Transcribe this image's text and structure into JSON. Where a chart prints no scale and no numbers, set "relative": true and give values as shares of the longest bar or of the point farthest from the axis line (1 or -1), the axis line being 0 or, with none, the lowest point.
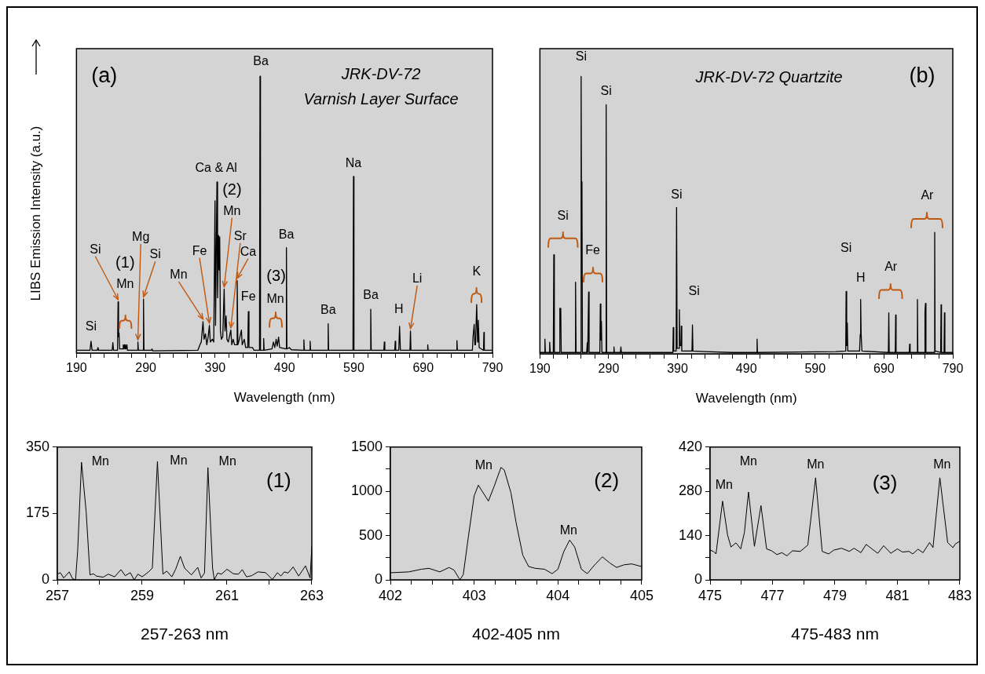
{
  "chart_data": [
    {
      "type": "line",
      "title": "JRK-DV-72\nVarnish Layer Surface",
      "xlabel": "Wavelength (nm)",
      "ylabel": "LIBS Emission Intensity (a.u.)",
      "relative": true,
      "color": "#000000",
      "xlim": [
        190,
        790
      ],
      "xticks": [
        190,
        {
          "value": 210,
          "label": null
        },
        {
          "value": 230,
          "label": null
        },
        {
          "value": 250,
          "label": null
        },
        {
          "value": 270,
          "label": null
        },
        290,
        {
          "value": 310,
          "label": null
        },
        {
          "value": 330,
          "label": null
        },
        {
          "value": 350,
          "label": null
        },
        {
          "value": 370,
          "label": null
        },
        390,
        {
          "value": 410,
          "label": null
        },
        {
          "value": 430,
          "label": null
        },
        {
          "value": 450,
          "label": null
        },
        {
          "value": 470,
          "label": null
        },
        490,
        {
          "value": 510,
          "label": null
        },
        {
          "value": 530,
          "label": null
        },
        {
          "value": 550,
          "label": null
        },
        {
          "value": 570,
          "label": null
        },
        590,
        {
          "value": 610,
          "label": null
        },
        {
          "value": 630,
          "label": null
        },
        {
          "value": 650,
          "label": null
        },
        {
          "value": 670,
          "label": null
        },
        690,
        {
          "value": 710,
          "label": null
        },
        {
          "value": 730,
          "label": null
        },
        {
          "value": 750,
          "label": null
        },
        {
          "value": 770,
          "label": null
        },
        790
      ],
      "x": [
        190,
        209.5,
        211,
        212.5,
        220,
        221,
        222,
        241.5,
        242.5,
        243.5,
        249.2,
        250,
        250.7,
        251.4,
        252.2,
        257,
        257.5,
        258.2,
        259.3,
        260,
        260.6,
        261.4,
        262.8,
        263.5,
        278,
        278.6,
        279.3,
        286,
        286.7,
        287.4,
        298,
        299,
        300,
        365,
        368,
        370,
        372.5,
        374,
        376,
        378,
        380,
        381.7,
        383,
        386,
        388,
        389.8,
        390.6,
        392.6,
        393.5,
        395,
        395.8,
        396.6,
        397.6,
        399,
        401,
        403,
        404.2,
        405.8,
        407,
        409,
        412.6,
        414,
        416,
        418,
        420.8,
        421.8,
        422.8,
        425,
        427.9,
        429,
        432,
        434,
        437,
        437.9,
        438.8,
        444,
        446,
        454,
        454.7,
        455.4,
        459.3,
        460,
        460.7,
        472,
        474,
        476,
        478,
        479.5,
        481.5,
        483,
        492.1,
        492.8,
        493.5,
        497,
        500,
        517.3,
        518,
        518.7,
        526.3,
        527,
        527.7,
        552.3,
        553,
        553.7,
        588.8,
        589.5,
        590.2,
        613.7,
        614.4,
        615.1,
        633.3,
        634,
        634.7,
        649,
        649.7,
        650.4,
        654.8,
        656,
        657.2,
        671,
        671.7,
        672.4,
        696,
        696.6,
        697.2,
        738,
        738.7,
        739.4,
        761,
        762,
        763.6,
        764.5,
        765.5,
        767.2,
        768.5,
        769.6,
        770.8,
        777,
        777.6,
        778.2,
        790
      ],
      "values": [
        0.01,
        0.01,
        0.043,
        0.01,
        0.01,
        0.02,
        0.01,
        0.01,
        0.038,
        0.01,
        0.01,
        0.185,
        0.06,
        0.073,
        0.015,
        0.015,
        0.03,
        0.015,
        0.03,
        0.015,
        0.03,
        0.015,
        0.03,
        0.01,
        0.01,
        0.04,
        0.01,
        0.01,
        0.195,
        0.01,
        0.01,
        0.015,
        0.008,
        0.01,
        0.03,
        0.04,
        0.114,
        0.05,
        0.07,
        0.03,
        0.06,
        0.1,
        0.04,
        0.05,
        0.04,
        0.55,
        0.1,
        0.618,
        0.2,
        0.425,
        0.3,
        0.42,
        0.08,
        0.05,
        0.06,
        0.231,
        0.08,
        0.134,
        0.05,
        0.04,
        0.083,
        0.03,
        0.05,
        0.03,
        0.03,
        0.262,
        0.03,
        0.05,
        0.083,
        0.03,
        0.05,
        0.02,
        0.02,
        0.15,
        0.02,
        0.02,
        0.01,
        0.01,
        1,
        0.01,
        0.01,
        0.053,
        0.01,
        0.015,
        0.04,
        0.02,
        0.05,
        0.025,
        0.058,
        0.02,
        0.015,
        0.381,
        0.015,
        0.02,
        0.012,
        0.01,
        0.048,
        0.01,
        0.01,
        0.043,
        0.01,
        0.01,
        0.106,
        0.01,
        0.01,
        0.638,
        0.01,
        0.01,
        0.158,
        0.01,
        0.01,
        0.04,
        0.01,
        0.01,
        0.043,
        0.01,
        0.01,
        0.097,
        0.01,
        0.01,
        0.08,
        0.01,
        0.01,
        0.03,
        0.01,
        0.01,
        0.045,
        0.01,
        0.01,
        0.06,
        0.104,
        0.03,
        0.03,
        0.175,
        0.04,
        0.119,
        0.02,
        0.01,
        0.075,
        0.01,
        0.01
      ],
      "annotations": [
        "(a)",
        {
          "text": "Si",
          "x": 211,
          "y": 0.043
        },
        {
          "text": "Si",
          "x": 250,
          "y": 0.185
        },
        "(1)",
        "Mn",
        {
          "text": "Mg",
          "x": 278.6,
          "y": 0.04
        },
        {
          "text": "Si",
          "x": 286.7,
          "y": 0.195
        },
        {
          "text": "Mn",
          "x": 372.5,
          "y": 0.114
        },
        {
          "text": "Fe",
          "x": 381.7,
          "y": 0.1
        },
        {
          "text": "Ca & Al",
          "x": 392.6,
          "y": 0.618
        },
        {
          "text": "(2)",
          "x": 403,
          "y": 0.231
        },
        {
          "text": "Mn",
          "x": 403,
          "y": 0.231
        },
        {
          "text": "Sr",
          "x": 412.6,
          "y": 0.083
        },
        {
          "text": "Ca",
          "x": 421.8,
          "y": 0.262
        },
        {
          "text": "Fe",
          "x": 437.9,
          "y": 0.15
        },
        {
          "text": "Ba",
          "x": 454.7,
          "y": 1
        },
        "(3)",
        "Mn",
        {
          "text": "Ba",
          "x": 492.8,
          "y": 0.381
        },
        {
          "text": "Ba",
          "x": 553,
          "y": 0.106
        },
        {
          "text": "Na",
          "x": 589.5,
          "y": 0.638
        },
        {
          "text": "Ba",
          "x": 614.4,
          "y": 0.158
        },
        {
          "text": "H",
          "x": 656,
          "y": 0.097
        },
        {
          "text": "Li",
          "x": 671.7,
          "y": 0.08
        },
        {
          "text": "K",
          "x": 767.2,
          "y": 0.175
        }
      ]
    },
    {
      "type": "line",
      "title": "JRK-DV-72 Quartzite",
      "xlabel": "Wavelength (nm)",
      "relative": true,
      "color": "#000000",
      "xlim": [
        190,
        790
      ],
      "xticks": [
        190,
        {
          "value": 210,
          "label": null
        },
        {
          "value": 230,
          "label": null
        },
        {
          "value": 250,
          "label": null
        },
        {
          "value": 270,
          "label": null
        },
        290,
        {
          "value": 310,
          "label": null
        },
        {
          "value": 330,
          "label": null
        },
        {
          "value": 350,
          "label": null
        },
        {
          "value": 370,
          "label": null
        },
        390,
        {
          "value": 410,
          "label": null
        },
        {
          "value": 430,
          "label": null
        },
        {
          "value": 450,
          "label": null
        },
        {
          "value": 470,
          "label": null
        },
        490,
        {
          "value": 510,
          "label": null
        },
        {
          "value": 530,
          "label": null
        },
        {
          "value": 550,
          "label": null
        },
        {
          "value": 570,
          "label": null
        },
        590,
        {
          "value": 610,
          "label": null
        },
        {
          "value": 630,
          "label": null
        },
        {
          "value": 650,
          "label": null
        },
        {
          "value": 670,
          "label": null
        },
        690,
        {
          "value": 710,
          "label": null
        },
        {
          "value": 730,
          "label": null
        },
        {
          "value": 750,
          "label": null
        },
        {
          "value": 770,
          "label": null
        },
        790
      ],
      "x": [
        190,
        196.5,
        197.3,
        198,
        203.5,
        204.2,
        205,
        209.5,
        210.2,
        211,
        218.2,
        219,
        219.6,
        220.3,
        221,
        241,
        241.8,
        242.6,
        249.3,
        249.9,
        250.5,
        251.1,
        251.8,
        258,
        258.8,
        259.5,
        260.1,
        260.8,
        261.5,
        277.1,
        277.8,
        278.6,
        279.4,
        280.1,
        285.6,
        286.3,
        287,
        297,
        297.6,
        298.2,
        307,
        307.7,
        308.4,
        383.2,
        383.8,
        384.5,
        388,
        388.6,
        389.4,
        392.2,
        392.7,
        393.4,
        395,
        395.5,
        396.2,
        411,
        411.7,
        412.4,
        430,
        470,
        505,
        505.6,
        506.2,
        620,
        634.4,
        635,
        635.8,
        636.7,
        637.4,
        654.5,
        655.5,
        656.1,
        656.8,
        658,
        696.4,
        697,
        697.6,
        706.4,
        707,
        707.6,
        726.7,
        727.3,
        728,
        738,
        738.6,
        739.2,
        749,
        749.6,
        750.3,
        751,
        763.1,
        763.7,
        764.3,
        772.4,
        773,
        773.6,
        777.3,
        777.9,
        778.5,
        790
      ],
      "values": [
        0.005,
        0.005,
        0.053,
        0.005,
        0.005,
        0.042,
        0.005,
        0.005,
        0.357,
        0.005,
        0.005,
        0.164,
        0.1,
        0.164,
        0.005,
        0.005,
        0.258,
        0.005,
        0.005,
        1,
        0.5,
        0.62,
        0.005,
        0.005,
        0.04,
        0.005,
        0.005,
        0.223,
        0.005,
        0.005,
        0.18,
        0.05,
        0.117,
        0.005,
        0.005,
        0.898,
        0.005,
        0.005,
        0.025,
        0.005,
        0.005,
        0.025,
        0.005,
        0.005,
        0.095,
        0.01,
        0.01,
        0.528,
        0.02,
        0.02,
        0.159,
        0.03,
        0.03,
        0.1,
        0.01,
        0.01,
        0.104,
        0.01,
        0.008,
        0.005,
        0.005,
        0.053,
        0.005,
        0.008,
        0.01,
        0.225,
        0.03,
        0.111,
        0.01,
        0.01,
        0.07,
        0.196,
        0.07,
        0.01,
        0.005,
        0.148,
        0.005,
        0.005,
        0.14,
        0.005,
        0.005,
        0.035,
        0.005,
        0.005,
        0.196,
        0.005,
        0.005,
        0.15,
        0.182,
        0.005,
        0.005,
        0.438,
        0.01,
        0.005,
        0.177,
        0.005,
        0.005,
        0.148,
        0.005,
        0.005
      ],
      "annotations": [
        "(b)",
        {
          "text": "Si",
          "x": 249.9,
          "y": 1
        },
        {
          "text": "Si",
          "x": 286.3,
          "y": 0.898
        },
        "Si",
        "Fe",
        {
          "text": "Si",
          "x": 388.6,
          "y": 0.528
        },
        {
          "text": "Si",
          "x": 411.7,
          "y": 0.104
        },
        {
          "text": "Si",
          "x": 635,
          "y": 0.225
        },
        {
          "text": "H",
          "x": 656.1,
          "y": 0.196
        },
        "Ar",
        "Ar"
      ]
    },
    {
      "type": "line",
      "xlabel": "257-263 nm",
      "color": "#000000",
      "xlim": [
        257,
        263
      ],
      "ylim": [
        0,
        350
      ],
      "xticks": [
        257,
        {
          "value": 258,
          "label": null
        },
        259,
        {
          "value": 260,
          "label": null
        },
        261,
        {
          "value": 262,
          "label": null
        },
        263
      ],
      "yticks": [
        0,
        175,
        350
      ],
      "x": [
        257,
        257.07,
        257.15,
        257.28,
        257.36,
        257.43,
        257.48,
        257.57,
        257.68,
        257.77,
        257.85,
        257.92,
        258.08,
        258.2,
        258.35,
        258.5,
        258.6,
        258.72,
        258.81,
        258.9,
        259,
        259.15,
        259.24,
        259.36,
        259.49,
        259.58,
        259.7,
        259.79,
        259.9,
        260,
        260.16,
        260.31,
        260.39,
        260.47,
        260.55,
        260.66,
        260.7,
        260.78,
        260.87,
        261,
        261.15,
        261.27,
        261.36,
        261.46,
        261.58,
        261.73,
        261.91,
        262.07,
        262.19,
        262.27,
        262.35,
        262.44,
        262.56,
        262.69,
        262.85,
        262.96,
        263
      ],
      "values": [
        15,
        19,
        5,
        21,
        3,
        0,
        78,
        310,
        179,
        13,
        16,
        10,
        7,
        15,
        8,
        27,
        11,
        19,
        0,
        15,
        8,
        21,
        31,
        312,
        15,
        23,
        8,
        28,
        62,
        31,
        13,
        33,
        5,
        18,
        296,
        31,
        0,
        18,
        15,
        28,
        16,
        15,
        27,
        8,
        11,
        21,
        19,
        1,
        19,
        10,
        21,
        18,
        34,
        10,
        37,
        5,
        88
      ],
      "annotations": [
        "(1)",
        {
          "text": "Mn",
          "x": 257.57,
          "y": 310
        },
        {
          "text": "Mn",
          "x": 259.36,
          "y": 312
        },
        {
          "text": "Mn",
          "x": 260.55,
          "y": 296
        }
      ]
    },
    {
      "type": "line",
      "xlabel": "402-405 nm",
      "color": "#000000",
      "xlim": [
        402,
        405
      ],
      "ylim": [
        0,
        1500
      ],
      "xticks": [
        402,
        {
          "value": 402.25,
          "label": null
        },
        {
          "value": 402.5,
          "label": null
        },
        {
          "value": 402.75,
          "label": null
        },
        403,
        {
          "value": 403.25,
          "label": null
        },
        {
          "value": 403.5,
          "label": null
        },
        {
          "value": 403.75,
          "label": null
        },
        404,
        {
          "value": 404.25,
          "label": null
        },
        {
          "value": 404.5,
          "label": null
        },
        {
          "value": 404.75,
          "label": null
        },
        405
      ],
      "yticks": [
        0,
        {
          "value": 250,
          "label": null
        },
        500,
        {
          "value": 750,
          "label": null
        },
        1000,
        {
          "value": 1250,
          "label": null
        },
        1500
      ],
      "x": [
        402,
        402.22,
        402.37,
        402.46,
        402.59,
        402.7,
        402.76,
        402.83,
        402.87,
        402.93,
        403,
        403.05,
        403.09,
        403.17,
        403.24,
        403.32,
        403.36,
        403.44,
        403.5,
        403.58,
        403.65,
        403.73,
        403.84,
        403.93,
        404,
        404.07,
        404.14,
        404.2,
        404.28,
        404.35,
        404.43,
        404.53,
        404.62,
        404.7,
        404.79,
        404.88,
        405
      ],
      "values": [
        80,
        90,
        120,
        130,
        90,
        140,
        110,
        0,
        60,
        480,
        950,
        1070,
        1010,
        890,
        1060,
        1270,
        1240,
        980,
        650,
        280,
        150,
        130,
        120,
        70,
        120,
        320,
        450,
        370,
        120,
        70,
        160,
        260,
        190,
        140,
        170,
        180,
        150
      ],
      "annotations": [
        "(2)",
        {
          "text": "Mn",
          "x": 403.32,
          "y": 1270
        },
        {
          "text": "Mn",
          "x": 404.14,
          "y": 450
        }
      ]
    },
    {
      "type": "line",
      "xlabel": "475-483 nm",
      "color": "#000000",
      "xlim": [
        475,
        483
      ],
      "ylim": [
        0,
        420
      ],
      "xticks": [
        475,
        {
          "value": 476,
          "label": null
        },
        477,
        {
          "value": 478,
          "label": null
        },
        479,
        {
          "value": 480,
          "label": null
        },
        481,
        {
          "value": 482,
          "label": null
        },
        483
      ],
      "yticks": [
        0,
        {
          "value": 70,
          "label": null
        },
        140,
        {
          "value": 210,
          "label": null
        },
        280,
        {
          "value": 350,
          "label": null
        },
        420
      ],
      "x": [
        475,
        475.11,
        475.19,
        475.4,
        475.56,
        475.67,
        475.83,
        475.98,
        476.1,
        476.23,
        476.42,
        476.63,
        476.81,
        476.97,
        477.14,
        477.3,
        477.46,
        477.64,
        477.89,
        478.13,
        478.38,
        478.59,
        478.8,
        478.96,
        479.21,
        479.46,
        479.61,
        479.83,
        480,
        480.21,
        480.37,
        480.56,
        480.79,
        481,
        481.16,
        481.37,
        481.49,
        481.66,
        481.82,
        482.03,
        482.14,
        482.36,
        482.61,
        482.78,
        482.86,
        483
      ],
      "values": [
        94,
        90,
        82,
        249,
        142,
        104,
        117,
        98,
        150,
        278,
        106,
        235,
        98,
        92,
        80,
        86,
        76,
        92,
        90,
        110,
        323,
        90,
        82,
        94,
        100,
        90,
        100,
        86,
        112,
        96,
        84,
        108,
        84,
        98,
        88,
        90,
        82,
        97,
        86,
        118,
        102,
        323,
        118,
        102,
        114,
        122
      ],
      "annotations": [
        "(3)",
        {
          "text": "Mn",
          "x": 475.4,
          "y": 249
        },
        {
          "text": "Mn",
          "x": 476.23,
          "y": 278
        },
        {
          "text": "Mn",
          "x": 478.38,
          "y": 323
        },
        {
          "text": "Mn",
          "x": 482.36,
          "y": 323
        }
      ]
    }
  ]
}
